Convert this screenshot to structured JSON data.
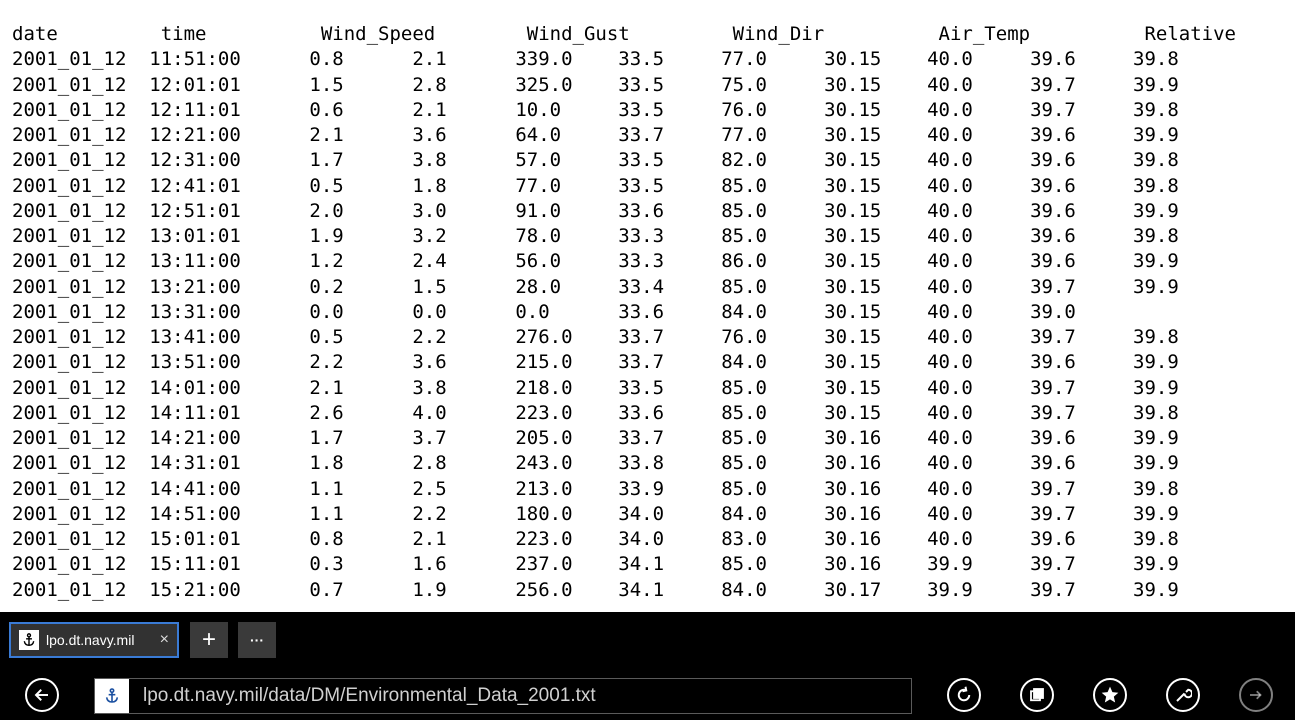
{
  "document": {
    "text": "date         time          Wind_Speed        Wind_Gust         Wind_Dir          Air_Temp          Relative\n2001_01_12  11:51:00      0.8      2.1      339.0    33.5     77.0     30.15    40.0     39.6     39.8\n2001_01_12  12:01:01      1.5      2.8      325.0    33.5     75.0     30.15    40.0     39.7     39.9\n2001_01_12  12:11:01      0.6      2.1      10.0     33.5     76.0     30.15    40.0     39.7     39.8\n2001_01_12  12:21:00      2.1      3.6      64.0     33.7     77.0     30.15    40.0     39.6     39.9\n2001_01_12  12:31:00      1.7      3.8      57.0     33.5     82.0     30.15    40.0     39.6     39.8\n2001_01_12  12:41:01      0.5      1.8      77.0     33.5     85.0     30.15    40.0     39.6     39.8\n2001_01_12  12:51:01      2.0      3.0      91.0     33.6     85.0     30.15    40.0     39.6     39.9\n2001_01_12  13:01:01      1.9      3.2      78.0     33.3     85.0     30.15    40.0     39.6     39.8\n2001_01_12  13:11:00      1.2      2.4      56.0     33.3     86.0     30.15    40.0     39.6     39.9\n2001_01_12  13:21:00      0.2      1.5      28.0     33.4     85.0     30.15    40.0     39.7     39.9\n2001_01_12  13:31:00      0.0      0.0      0.0      33.6     84.0     30.15    40.0     39.0\n2001_01_12  13:41:00      0.5      2.2      276.0    33.7     76.0     30.15    40.0     39.7     39.8\n2001_01_12  13:51:00      2.2      3.6      215.0    33.7     84.0     30.15    40.0     39.6     39.9\n2001_01_12  14:01:00      2.1      3.8      218.0    33.5     85.0     30.15    40.0     39.7     39.9\n2001_01_12  14:11:01      2.6      4.0      223.0    33.6     85.0     30.15    40.0     39.7     39.8\n2001_01_12  14:21:00      1.7      3.7      205.0    33.7     85.0     30.16    40.0     39.6     39.9\n2001_01_12  14:31:01      1.8      2.8      243.0    33.8     85.0     30.16    40.0     39.6     39.9\n2001_01_12  14:41:00      1.1      2.5      213.0    33.9     85.0     30.16    40.0     39.7     39.8\n2001_01_12  14:51:00      1.1      2.2      180.0    34.0     84.0     30.16    40.0     39.7     39.9\n2001_01_12  15:01:01      0.8      2.1      223.0    34.0     83.0     30.16    40.0     39.6     39.8\n2001_01_12  15:11:01      0.3      1.6      237.0    34.1     85.0     30.16    39.9     39.7     39.9\n2001_01_12  15:21:00      0.7      1.9      256.0    34.1     84.0     30.17    39.9     39.7     39.9"
  },
  "tabs": [
    {
      "title": "lpo.dt.navy.mil",
      "favicon": "anchor-icon",
      "close_label": "×"
    }
  ],
  "tab_controls": {
    "new_tab_label": "+",
    "more_label": "···"
  },
  "address_bar": {
    "url": "lpo.dt.navy.mil/data/DM/Environmental_Data_2001.txt",
    "favicon": "anchor-icon"
  },
  "nav_icons": {
    "back": "back-arrow-icon",
    "refresh": "refresh-icon",
    "tabs": "tabs-icon",
    "favorites": "star-icon",
    "tools": "wrench-icon",
    "share": "share-icon"
  },
  "colors": {
    "chrome_bg": "#000000",
    "tab_bg": "#323232",
    "tab_border": "#3a7bd5",
    "content_bg": "#ffffff"
  }
}
